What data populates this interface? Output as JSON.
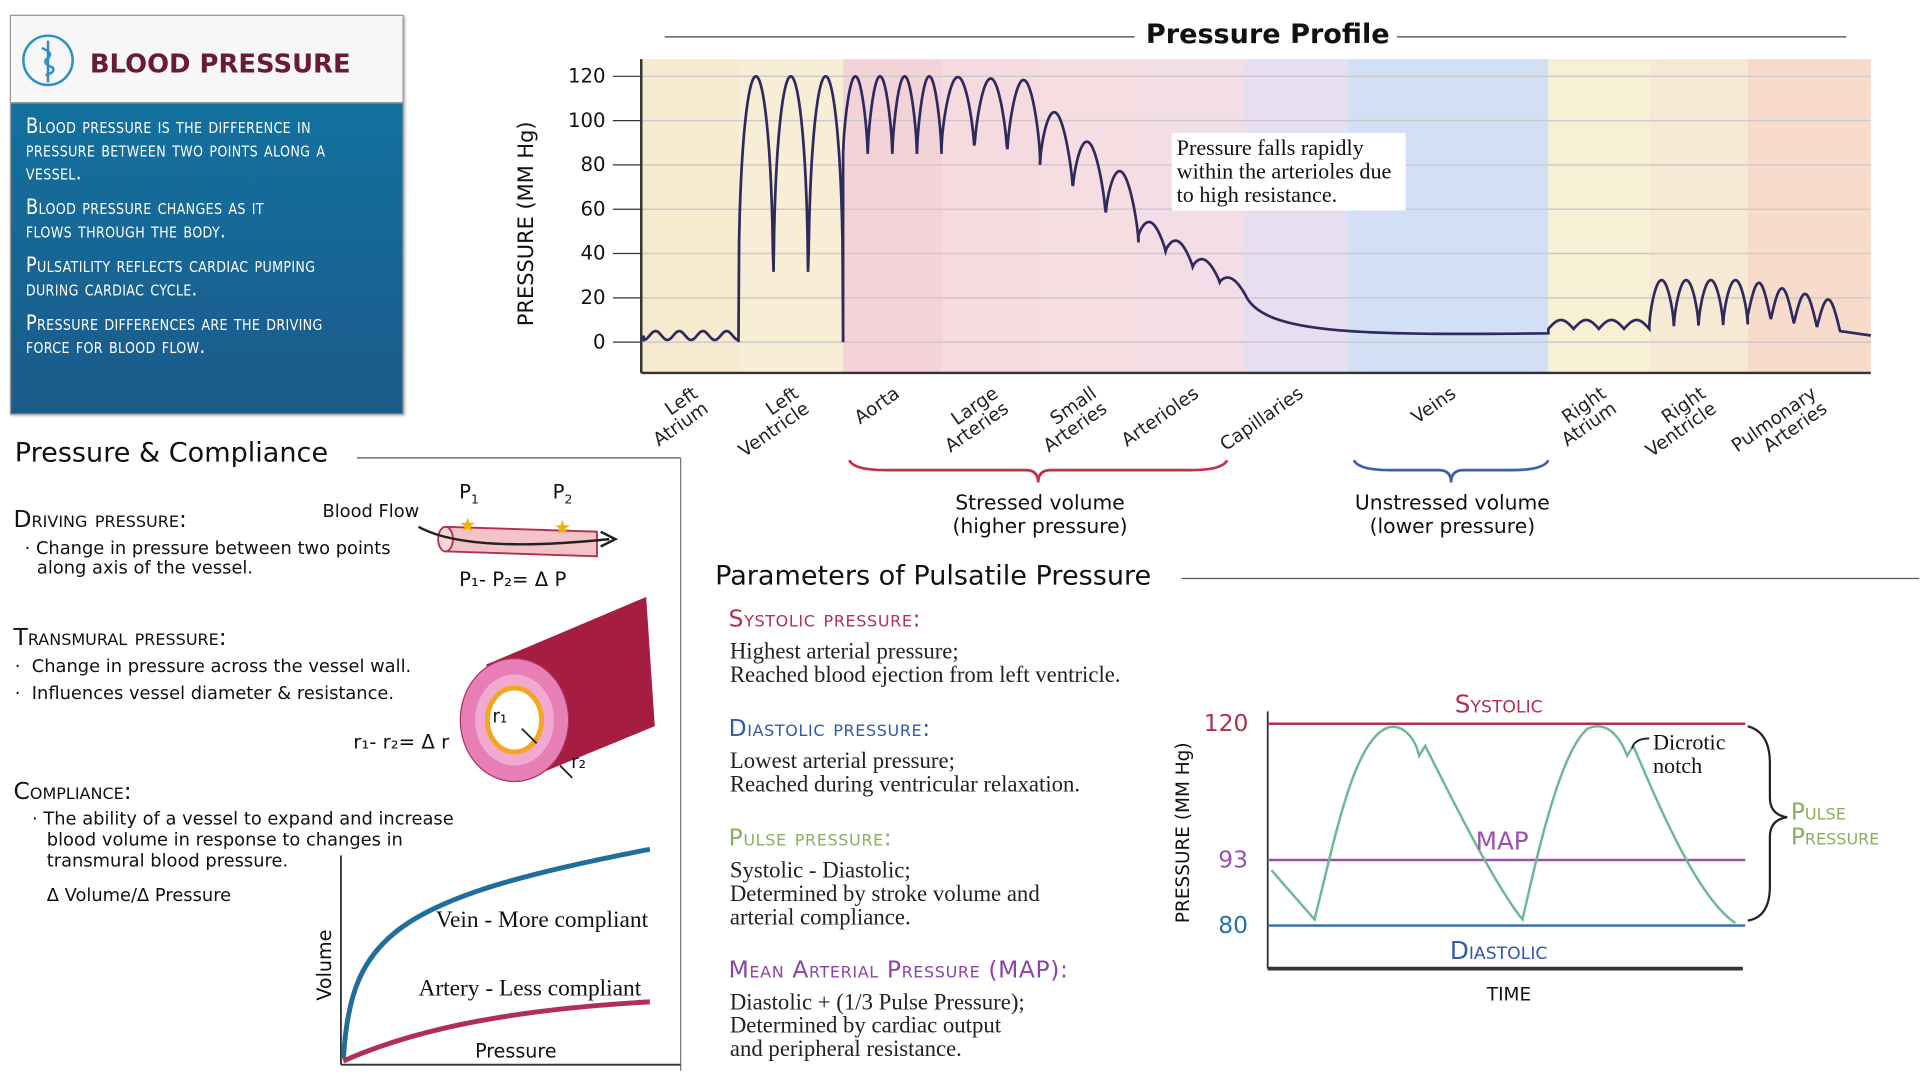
{
  "info_panel": {
    "title": "BLOOD PRESSURE",
    "logo_icon": "caduceus-icon",
    "points": [
      "Blood pressure is the difference in pressure between two points along a vessel.",
      "Blood pressure changes as it flows through the body.",
      "Pulsatility reflects cardiac pumping during cardiac cycle.",
      "Pressure differences are the driving force for blood flow."
    ]
  },
  "pressure_profile": {
    "annotation": "Pressure falls rapidly within the arterioles due to high resistance.",
    "stressed": {
      "line1": "Stressed volume",
      "line2": "(higher pressure)",
      "color": "#c0304a"
    },
    "unstressed": {
      "line1": "Unstressed volume",
      "line2": "(lower pressure)",
      "color": "#3a5fae"
    }
  },
  "chart_data": [
    {
      "type": "line",
      "title": "Pressure Profile",
      "ylabel": "PRESSURE (MM Hg)",
      "ylim": [
        0,
        120
      ],
      "yticks": [
        0,
        20,
        40,
        60,
        80,
        100,
        120
      ],
      "grid": true,
      "line_color": "#2e2a5e",
      "categories": [
        "Left Atrium",
        "Left Ventricle",
        "Aorta",
        "Large Arteries",
        "Small Arteries",
        "Arterioles",
        "Capillaries",
        "Veins",
        "Right Atrium",
        "Right Ventricle",
        "Pulmonary Arteries"
      ],
      "region_colors": [
        "#f6ebcf",
        "#f8eed6",
        "#f4d3d8",
        "#f5dbe0",
        "#f5dde2",
        "#f3dde6",
        "#e6dff2",
        "#d3dff4",
        "#f7f0d4",
        "#f7ead4",
        "#f8dccb"
      ],
      "pressure_ranges": [
        [
          0,
          5
        ],
        [
          0,
          120
        ],
        [
          80,
          120
        ],
        [
          85,
          120
        ],
        [
          40,
          100
        ],
        [
          20,
          55
        ],
        [
          5,
          20
        ],
        [
          3,
          5
        ],
        [
          2,
          8
        ],
        [
          5,
          25
        ],
        [
          8,
          25
        ]
      ]
    },
    {
      "type": "line",
      "ylabel": "PRESSURE (MM Hg)",
      "xlabel": "TIME",
      "yticks": [
        80,
        93,
        120
      ],
      "ylim": [
        75,
        125
      ],
      "reference_lines": [
        {
          "name": "Systolic",
          "value": 120,
          "color": "#b0304e"
        },
        {
          "name": "MAP",
          "value": 93,
          "color": "#9b4fb0"
        },
        {
          "name": "Diastolic",
          "value": 80,
          "color": "#2a6fa8"
        }
      ],
      "annotation": "Dicrotic notch",
      "bracket_label": "Pulse Pressure",
      "line_color": "#6db894"
    },
    {
      "type": "line",
      "xlabel": "Pressure",
      "ylabel": "Volume",
      "series": [
        {
          "name": "Vein - More compliant",
          "color": "#1f6f9a"
        },
        {
          "name": "Artery - Less compliant",
          "color": "#b03055"
        }
      ]
    }
  ],
  "compliance": {
    "title": "Pressure & Compliance",
    "driving": {
      "heading": "Driving pressure:",
      "bullet": "Change in pressure between two points along axis of the vessel.",
      "flow_label": "Blood Flow",
      "p1": "P",
      "p1_sub": "1",
      "p2": "P",
      "p2_sub": "2",
      "equation": "P₁- P₂= Δ P"
    },
    "transmural": {
      "heading": "Transmural pressure:",
      "bullets": [
        "Change in pressure across the vessel wall.",
        "Influences vessel diameter & resistance."
      ],
      "r1": "r₁",
      "r2": "r₂",
      "equation": "r₁- r₂= Δ r"
    },
    "compliance": {
      "heading": "Compliance:",
      "bullet": "The ability of a vessel to expand and increase blood volume in response to changes in transmural blood pressure.",
      "formula": "Δ Volume/Δ Pressure"
    }
  },
  "parameters": {
    "title": "Parameters of Pulsatile Pressure",
    "items": [
      {
        "heading": "Systolic pressure:",
        "color": "#b0304e",
        "lines": [
          "Highest arterial pressure;",
          "Reached blood ejection from left ventricle."
        ]
      },
      {
        "heading": "Diastolic pressure:",
        "color": "#2f5aa8",
        "lines": [
          "Lowest arterial pressure;",
          "Reached during ventricular relaxation."
        ]
      },
      {
        "heading": "Pulse pressure:",
        "color": "#8aae5c",
        "lines": [
          "Systolic - Diastolic;",
          "Determined by stroke volume and",
          "arterial compliance."
        ]
      },
      {
        "heading": "Mean Arterial Pressure (MAP):",
        "color": "#8a44a8",
        "lines": [
          "Diastolic + (1/3 Pulse Pressure);",
          "Determined by cardiac output",
          "and peripheral resistance."
        ]
      }
    ]
  }
}
